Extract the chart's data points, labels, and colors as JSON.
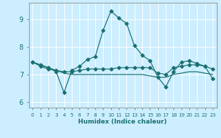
{
  "xlabel": "Humidex (Indice chaleur)",
  "background_color": "#cceeff",
  "grid_color": "#ffffff",
  "line_color": "#1a7070",
  "xlim": [
    -0.5,
    23.5
  ],
  "ylim": [
    5.8,
    9.6
  ],
  "xtick_labels": [
    "0",
    "1",
    "2",
    "3",
    "4",
    "5",
    "6",
    "7",
    "8",
    "9",
    "10",
    "11",
    "12",
    "13",
    "14",
    "15",
    "16",
    "17",
    "18",
    "19",
    "20",
    "21",
    "22",
    "23"
  ],
  "ytick_values": [
    6,
    7,
    8,
    9
  ],
  "series1_x": [
    0,
    1,
    2,
    3,
    4,
    5,
    6,
    7,
    8,
    9,
    10,
    11,
    12,
    13,
    14,
    15,
    16,
    17,
    18,
    19,
    20,
    21,
    22,
    23
  ],
  "series1_y": [
    7.45,
    7.35,
    7.25,
    7.1,
    6.35,
    7.15,
    7.3,
    7.55,
    7.65,
    8.6,
    9.3,
    9.05,
    8.85,
    8.05,
    7.7,
    7.5,
    6.9,
    6.55,
    7.1,
    7.45,
    7.5,
    7.4,
    7.3,
    6.85
  ],
  "series2_x": [
    0,
    1,
    2,
    3,
    4,
    5,
    6,
    7,
    8,
    9,
    10,
    11,
    12,
    13,
    14,
    15,
    16,
    17,
    18,
    19,
    20,
    21,
    22,
    23
  ],
  "series2_y": [
    7.45,
    7.3,
    7.2,
    7.15,
    7.1,
    7.1,
    7.15,
    7.2,
    7.2,
    7.2,
    7.2,
    7.25,
    7.25,
    7.25,
    7.25,
    7.25,
    7.05,
    7.0,
    7.25,
    7.3,
    7.35,
    7.35,
    7.3,
    7.2
  ],
  "series3_x": [
    0,
    1,
    2,
    3,
    4,
    5,
    6,
    7,
    8,
    9,
    10,
    11,
    12,
    13,
    14,
    15,
    16,
    17,
    18,
    19,
    20,
    21,
    22,
    23
  ],
  "series3_y": [
    7.45,
    7.35,
    7.25,
    7.15,
    7.05,
    7.0,
    7.0,
    7.0,
    7.0,
    7.0,
    7.0,
    7.0,
    7.0,
    7.0,
    7.0,
    6.95,
    6.9,
    6.9,
    7.0,
    7.05,
    7.1,
    7.1,
    7.05,
    7.0
  ],
  "marker_size": 2.5,
  "line_width": 0.9
}
